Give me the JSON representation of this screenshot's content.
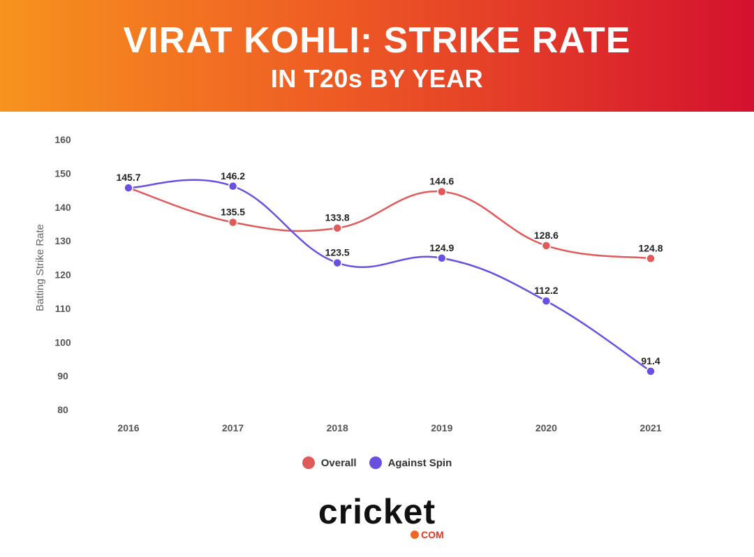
{
  "header": {
    "title": "VIRAT KOHLI: STRIKE RATE",
    "subtitle": "IN T20s BY YEAR"
  },
  "chart_data": {
    "type": "line",
    "title": "VIRAT KOHLI: STRIKE RATE IN T20s BY YEAR",
    "xlabel": "",
    "ylabel": "Batting Strike Rate",
    "categories": [
      "2016",
      "2017",
      "2018",
      "2019",
      "2020",
      "2021"
    ],
    "ylim": [
      80,
      160
    ],
    "yticks": [
      80,
      90,
      100,
      110,
      120,
      130,
      140,
      150,
      160
    ],
    "grid": false,
    "legend_position": "bottom",
    "series": [
      {
        "name": "Overall",
        "color": "#e05a5a",
        "values": [
          145.7,
          135.5,
          133.8,
          144.6,
          128.6,
          124.8
        ]
      },
      {
        "name": "Against Spin",
        "color": "#6a4fe0",
        "values": [
          145.7,
          146.2,
          123.5,
          124.9,
          112.2,
          91.4
        ]
      }
    ],
    "data_labels": {
      "Overall": [
        "145.7",
        "135.5",
        "133.8",
        "144.6",
        "128.6",
        "124.8"
      ],
      "Against Spin": [
        "",
        "146.2",
        "123.5",
        "124.9",
        "112.2",
        "91.4"
      ]
    }
  },
  "brand": {
    "logo_text": "CRICKET",
    "domain": "COM"
  }
}
